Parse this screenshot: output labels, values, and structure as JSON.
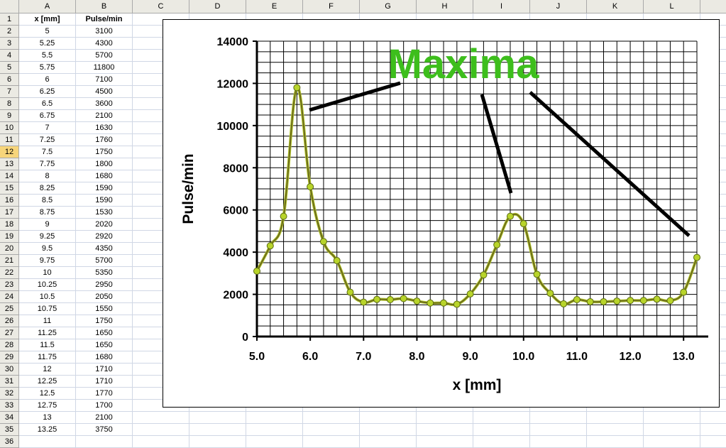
{
  "sheet": {
    "columns": [
      "A",
      "B",
      "C",
      "D",
      "E",
      "F",
      "G",
      "H",
      "I",
      "J",
      "K",
      "L"
    ],
    "header_row": [
      "x [mm]",
      "Pulse/min"
    ],
    "selected_row": 12,
    "rows": [
      [
        "5",
        "3100"
      ],
      [
        "5.25",
        "4300"
      ],
      [
        "5.5",
        "5700"
      ],
      [
        "5.75",
        "11800"
      ],
      [
        "6",
        "7100"
      ],
      [
        "6.25",
        "4500"
      ],
      [
        "6.5",
        "3600"
      ],
      [
        "6.75",
        "2100"
      ],
      [
        "7",
        "1630"
      ],
      [
        "7.25",
        "1760"
      ],
      [
        "7.5",
        "1750"
      ],
      [
        "7.75",
        "1800"
      ],
      [
        "8",
        "1680"
      ],
      [
        "8.25",
        "1590"
      ],
      [
        "8.5",
        "1590"
      ],
      [
        "8.75",
        "1530"
      ],
      [
        "9",
        "2020"
      ],
      [
        "9.25",
        "2920"
      ],
      [
        "9.5",
        "4350"
      ],
      [
        "9.75",
        "5700"
      ],
      [
        "10",
        "5350"
      ],
      [
        "10.25",
        "2950"
      ],
      [
        "10.5",
        "2050"
      ],
      [
        "10.75",
        "1550"
      ],
      [
        "11",
        "1750"
      ],
      [
        "11.25",
        "1650"
      ],
      [
        "11.5",
        "1650"
      ],
      [
        "11.75",
        "1680"
      ],
      [
        "12",
        "1710"
      ],
      [
        "12.25",
        "1710"
      ],
      [
        "12.5",
        "1770"
      ],
      [
        "12.75",
        "1700"
      ],
      [
        "13",
        "2100"
      ],
      [
        "13.25",
        "3750"
      ]
    ],
    "extra_row_number": "36"
  },
  "chart_data": {
    "type": "line",
    "title": "",
    "xlabel": "x [mm]",
    "ylabel": "Pulse/min",
    "xlim": [
      5.0,
      13.25
    ],
    "ylim": [
      0,
      14000
    ],
    "x_ticks": [
      "5.0",
      "6.0",
      "7.0",
      "8.0",
      "9.0",
      "10.0",
      "11.0",
      "12.0",
      "13.0"
    ],
    "y_ticks": [
      "0",
      "2000",
      "4000",
      "6000",
      "8000",
      "10000",
      "12000",
      "14000"
    ],
    "grid": true,
    "line_color": "#6b6b1c",
    "marker_color": "#b8d42a",
    "annotation_color": "#3dbe1c",
    "annotation": "Maxima",
    "series": [
      {
        "x": [
          5,
          5.25,
          5.5,
          5.75,
          6,
          6.25,
          6.5,
          6.75,
          7,
          7.25,
          7.5,
          7.75,
          8,
          8.25,
          8.5,
          8.75,
          9,
          9.25,
          9.5,
          9.75,
          10,
          10.25,
          10.5,
          10.75,
          11,
          11.25,
          11.5,
          11.75,
          12,
          12.25,
          12.5,
          12.75,
          13,
          13.25
        ],
        "values": [
          3100,
          4300,
          5700,
          11800,
          7100,
          4500,
          3600,
          2100,
          1630,
          1760,
          1750,
          1800,
          1680,
          1590,
          1590,
          1530,
          2020,
          2920,
          4350,
          5700,
          5350,
          2950,
          2050,
          1550,
          1750,
          1650,
          1650,
          1680,
          1710,
          1710,
          1770,
          1700,
          2100,
          3750
        ]
      }
    ]
  }
}
